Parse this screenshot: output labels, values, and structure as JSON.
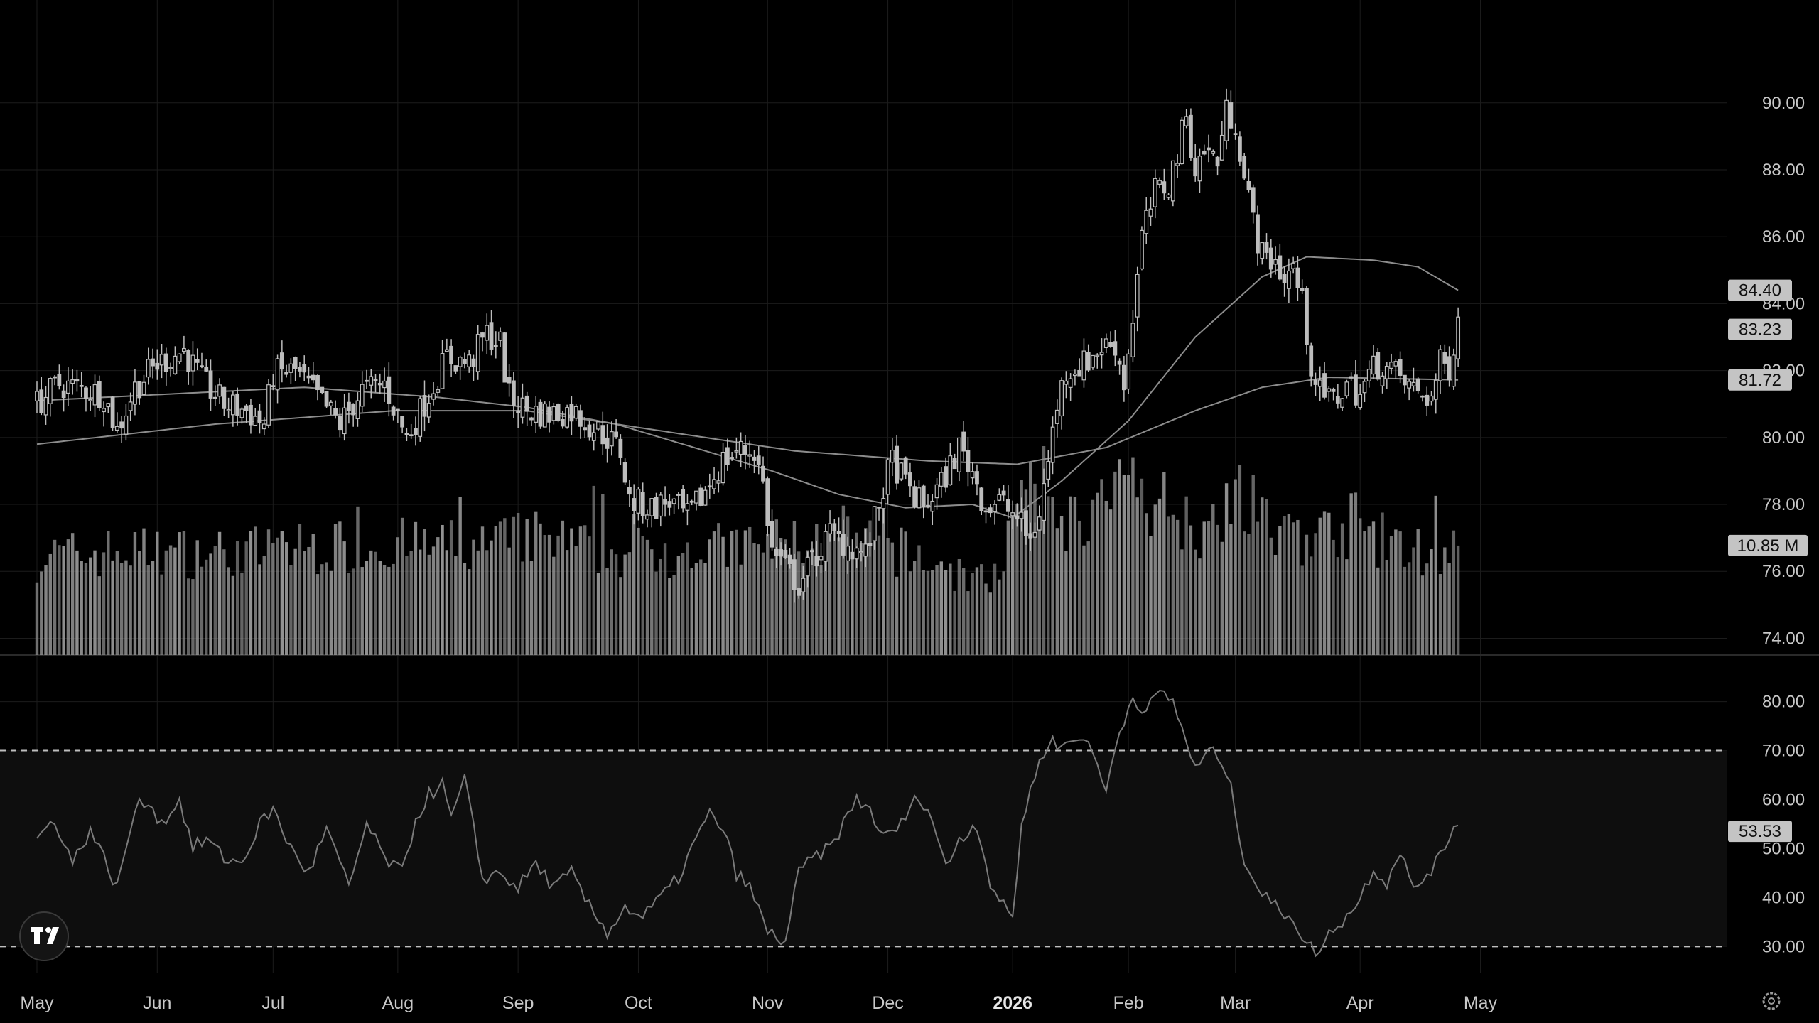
{
  "chart_data": {
    "type": "candlestick",
    "price_axis": {
      "range": [
        73.5,
        91.8
      ],
      "ticks": [
        "74.00",
        "76.00",
        "78.00",
        "80.00",
        "82.00",
        "84.00",
        "86.00",
        "88.00",
        "90.00"
      ]
    },
    "rsi_axis": {
      "range": [
        26,
        84
      ],
      "ticks": [
        "30.00",
        "40.00",
        "50.00",
        "60.00",
        "70.00",
        "80.00"
      ],
      "bands": [
        30,
        70
      ]
    },
    "time_axis": {
      "labels": [
        {
          "text": "May",
          "day": 0,
          "bold": false
        },
        {
          "text": "Jun",
          "day": 27,
          "bold": false
        },
        {
          "text": "Jul",
          "day": 53,
          "bold": false
        },
        {
          "text": "Aug",
          "day": 81,
          "bold": false
        },
        {
          "text": "Sep",
          "day": 108,
          "bold": false
        },
        {
          "text": "Oct",
          "day": 135,
          "bold": false
        },
        {
          "text": "Nov",
          "day": 164,
          "bold": false
        },
        {
          "text": "Dec",
          "day": 191,
          "bold": false
        },
        {
          "text": "2026",
          "day": 219,
          "bold": true
        },
        {
          "text": "Feb",
          "day": 245,
          "bold": false
        },
        {
          "text": "Mar",
          "day": 269,
          "bold": false
        },
        {
          "text": "Apr",
          "day": 297,
          "bold": false
        },
        {
          "text": "May",
          "day": 324,
          "bold": false
        }
      ]
    },
    "price_keypoints": [
      [
        0,
        81.0
      ],
      [
        5,
        81.6
      ],
      [
        15,
        81.3
      ],
      [
        18,
        80.2
      ],
      [
        22,
        81.5
      ],
      [
        27,
        82.2
      ],
      [
        33,
        82.6
      ],
      [
        37,
        81.7
      ],
      [
        42,
        81.0
      ],
      [
        47,
        80.8
      ],
      [
        51,
        80.4
      ],
      [
        53,
        81.9
      ],
      [
        58,
        82.0
      ],
      [
        63,
        81.2
      ],
      [
        68,
        80.4
      ],
      [
        73,
        81.4
      ],
      [
        78,
        81.6
      ],
      [
        83,
        80.0
      ],
      [
        88,
        81.3
      ],
      [
        92,
        82.4
      ],
      [
        97,
        82.2
      ],
      [
        101,
        83.1
      ],
      [
        104,
        82.8
      ],
      [
        106,
        81.2
      ],
      [
        110,
        80.8
      ],
      [
        115,
        80.7
      ],
      [
        120,
        80.8
      ],
      [
        123,
        80.5
      ],
      [
        128,
        80.0
      ],
      [
        131,
        79.6
      ],
      [
        133,
        78.1
      ],
      [
        138,
        77.9
      ],
      [
        142,
        78.1
      ],
      [
        146,
        77.6
      ],
      [
        150,
        78.4
      ],
      [
        154,
        79.3
      ],
      [
        157,
        79.6
      ],
      [
        161,
        79.6
      ],
      [
        163,
        78.6
      ],
      [
        165,
        76.6
      ],
      [
        168,
        76.1
      ],
      [
        171,
        75.6
      ],
      [
        174,
        76.3
      ],
      [
        178,
        77.1
      ],
      [
        182,
        76.8
      ],
      [
        186,
        76.5
      ],
      [
        188,
        77.5
      ],
      [
        190,
        78.5
      ],
      [
        192,
        79.3
      ],
      [
        195,
        78.6
      ],
      [
        199,
        77.9
      ],
      [
        203,
        78.6
      ],
      [
        207,
        79.7
      ],
      [
        210,
        79.0
      ],
      [
        213,
        77.9
      ],
      [
        216,
        78.1
      ],
      [
        220,
        77.6
      ],
      [
        223,
        76.9
      ],
      [
        225,
        77.8
      ],
      [
        227,
        79.3
      ],
      [
        229,
        81.0
      ],
      [
        231,
        82.0
      ],
      [
        235,
        82.2
      ],
      [
        239,
        82.7
      ],
      [
        242,
        82.8
      ],
      [
        244,
        81.6
      ],
      [
        246,
        83.6
      ],
      [
        248,
        86.0
      ],
      [
        251,
        87.3
      ],
      [
        254,
        87.6
      ],
      [
        256,
        88.5
      ],
      [
        258,
        89.6
      ],
      [
        260,
        88.0
      ],
      [
        262,
        88.6
      ],
      [
        265,
        88.3
      ],
      [
        267,
        89.7
      ],
      [
        269,
        89.5
      ],
      [
        271,
        87.7
      ],
      [
        273,
        86.5
      ],
      [
        275,
        85.4
      ],
      [
        278,
        85.3
      ],
      [
        280,
        84.7
      ],
      [
        282,
        85.1
      ],
      [
        284,
        84.0
      ],
      [
        286,
        82.2
      ],
      [
        288,
        81.3
      ],
      [
        291,
        81.1
      ],
      [
        294,
        81.6
      ],
      [
        297,
        81.3
      ],
      [
        300,
        82.1
      ],
      [
        302,
        82.2
      ],
      [
        305,
        81.9
      ],
      [
        308,
        81.5
      ],
      [
        311,
        81.3
      ],
      [
        313,
        81.2
      ],
      [
        315,
        82.2
      ],
      [
        317,
        82.1
      ],
      [
        319,
        83.6
      ]
    ],
    "rsi_keypoints": [
      [
        0,
        52
      ],
      [
        4,
        56
      ],
      [
        8,
        47
      ],
      [
        12,
        54
      ],
      [
        18,
        42
      ],
      [
        22,
        58
      ],
      [
        25,
        60
      ],
      [
        28,
        55
      ],
      [
        32,
        60
      ],
      [
        35,
        50
      ],
      [
        38,
        52
      ],
      [
        42,
        48
      ],
      [
        46,
        47
      ],
      [
        50,
        55
      ],
      [
        53,
        58
      ],
      [
        57,
        50
      ],
      [
        61,
        45
      ],
      [
        65,
        54
      ],
      [
        70,
        42
      ],
      [
        74,
        55
      ],
      [
        78,
        48
      ],
      [
        82,
        45
      ],
      [
        85,
        56
      ],
      [
        88,
        61
      ],
      [
        91,
        63
      ],
      [
        93,
        56
      ],
      [
        96,
        64
      ],
      [
        100,
        44
      ],
      [
        104,
        45
      ],
      [
        108,
        42
      ],
      [
        112,
        47
      ],
      [
        116,
        42
      ],
      [
        120,
        45
      ],
      [
        124,
        38
      ],
      [
        128,
        33
      ],
      [
        132,
        38
      ],
      [
        136,
        36
      ],
      [
        140,
        40
      ],
      [
        144,
        44
      ],
      [
        148,
        52
      ],
      [
        151,
        57
      ],
      [
        154,
        54
      ],
      [
        157,
        45
      ],
      [
        160,
        42
      ],
      [
        164,
        33
      ],
      [
        168,
        31
      ],
      [
        171,
        45
      ],
      [
        174,
        48
      ],
      [
        178,
        50
      ],
      [
        181,
        55
      ],
      [
        184,
        60
      ],
      [
        187,
        58
      ],
      [
        190,
        52
      ],
      [
        194,
        55
      ],
      [
        198,
        61
      ],
      [
        201,
        56
      ],
      [
        204,
        46
      ],
      [
        207,
        52
      ],
      [
        211,
        55
      ],
      [
        214,
        43
      ],
      [
        217,
        38
      ],
      [
        219,
        36
      ],
      [
        221,
        55
      ],
      [
        224,
        65
      ],
      [
        227,
        72
      ],
      [
        230,
        71
      ],
      [
        233,
        72
      ],
      [
        236,
        73
      ],
      [
        238,
        66
      ],
      [
        240,
        62
      ],
      [
        243,
        74
      ],
      [
        246,
        81
      ],
      [
        249,
        78
      ],
      [
        252,
        82
      ],
      [
        255,
        80
      ],
      [
        258,
        72
      ],
      [
        260,
        66
      ],
      [
        263,
        70
      ],
      [
        266,
        68
      ],
      [
        268,
        62
      ],
      [
        271,
        48
      ],
      [
        274,
        42
      ],
      [
        278,
        38
      ],
      [
        282,
        36
      ],
      [
        285,
        30
      ],
      [
        288,
        29
      ],
      [
        291,
        34
      ],
      [
        294,
        36
      ],
      [
        297,
        40
      ],
      [
        300,
        46
      ],
      [
        303,
        43
      ],
      [
        306,
        50
      ],
      [
        309,
        41
      ],
      [
        312,
        45
      ],
      [
        315,
        48
      ],
      [
        318,
        55
      ]
    ],
    "volume_keypoints": [
      [
        0,
        10.0
      ],
      [
        20,
        10.6
      ],
      [
        40,
        10.4
      ],
      [
        60,
        10.9
      ],
      [
        80,
        11.2
      ],
      [
        100,
        11.0
      ],
      [
        110,
        12.0
      ],
      [
        130,
        10.4
      ],
      [
        150,
        10.8
      ],
      [
        160,
        11.0
      ],
      [
        170,
        11.5
      ],
      [
        190,
        11.1
      ],
      [
        214,
        7.2
      ],
      [
        220,
        14.5
      ],
      [
        226,
        17.0
      ],
      [
        232,
        13.5
      ],
      [
        246,
        16.8
      ],
      [
        256,
        14.8
      ],
      [
        262,
        12.5
      ],
      [
        268,
        17.0
      ],
      [
        274,
        13.5
      ],
      [
        280,
        12.0
      ],
      [
        290,
        12.4
      ],
      [
        296,
        13.5
      ],
      [
        300,
        12.2
      ],
      [
        306,
        10.6
      ],
      [
        312,
        10.7
      ],
      [
        319,
        10.85
      ]
    ],
    "sma_short_keypoints": [
      [
        0,
        81.1
      ],
      [
        30,
        81.3
      ],
      [
        60,
        81.5
      ],
      [
        90,
        81.2
      ],
      [
        110,
        80.9
      ],
      [
        130,
        80.4
      ],
      [
        150,
        79.6
      ],
      [
        165,
        79.0
      ],
      [
        180,
        78.3
      ],
      [
        195,
        77.9
      ],
      [
        210,
        78.0
      ],
      [
        219,
        77.6
      ],
      [
        230,
        78.7
      ],
      [
        245,
        80.5
      ],
      [
        260,
        83.0
      ],
      [
        275,
        84.8
      ],
      [
        285,
        85.4
      ],
      [
        300,
        85.3
      ],
      [
        310,
        85.1
      ],
      [
        319,
        84.4
      ]
    ],
    "sma_long_keypoints": [
      [
        0,
        79.8
      ],
      [
        40,
        80.4
      ],
      [
        80,
        80.8
      ],
      [
        110,
        80.8
      ],
      [
        140,
        80.2
      ],
      [
        170,
        79.6
      ],
      [
        200,
        79.3
      ],
      [
        220,
        79.2
      ],
      [
        240,
        79.7
      ],
      [
        260,
        80.8
      ],
      [
        275,
        81.5
      ],
      [
        290,
        81.8
      ],
      [
        319,
        81.72
      ]
    ],
    "price_labels": [
      {
        "text": "84.40",
        "value": 84.4
      },
      {
        "text": "83.23",
        "value": 83.23
      },
      {
        "text": "81.72",
        "value": 81.72
      }
    ],
    "volume_label": {
      "text": "10.85 M",
      "value": 10.85
    },
    "rsi_label": {
      "text": "53.53",
      "value": 53.53
    },
    "colors": {
      "candle": "#bdbdbd",
      "volume": "#9a9a9a",
      "sma": "#8c8c8c",
      "rsi": "#7a7a7a",
      "grid": "#1c1c1c",
      "rsi_band_fill": "#0e0e0e",
      "tag_bg": "#c4c4c4"
    }
  },
  "widgets": {
    "logo_icon": "tradingview-logo-icon",
    "settings_icon": "gear-icon"
  }
}
